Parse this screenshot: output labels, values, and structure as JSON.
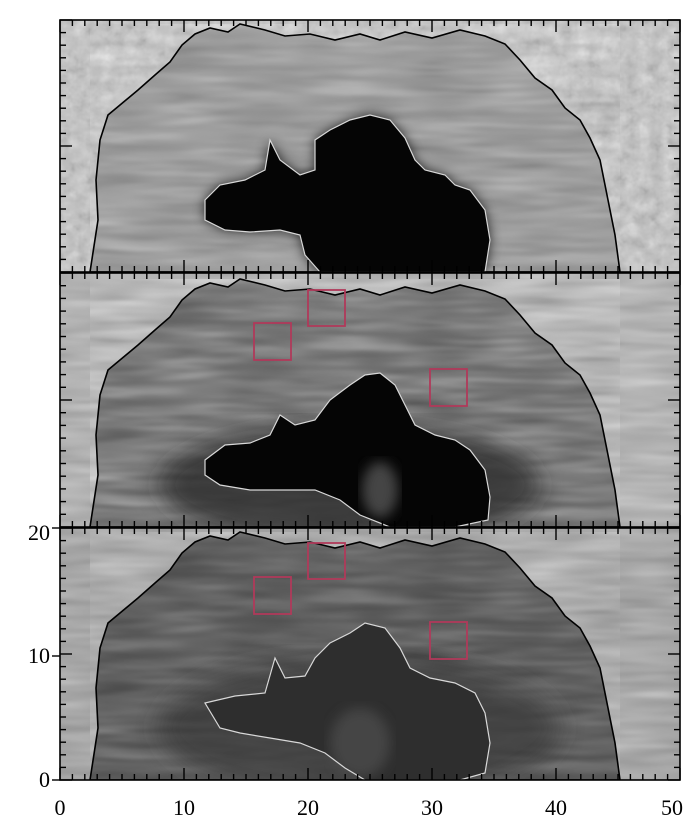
{
  "figure": {
    "panels": [
      {
        "id": "panel-1",
        "has_boxes": false,
        "y_ticks_labeled": false
      },
      {
        "id": "panel-2",
        "has_boxes": true,
        "y_ticks_labeled": false
      },
      {
        "id": "panel-3",
        "has_boxes": true,
        "y_ticks_labeled": true
      }
    ],
    "x_axis": {
      "range": [
        0,
        50
      ],
      "tick_labels": [
        "0",
        "10",
        "20",
        "30",
        "40",
        "50"
      ]
    },
    "y_axis": {
      "range": [
        0,
        20
      ],
      "tick_labels": [
        "0",
        "10",
        "20"
      ]
    },
    "boxes": [
      {
        "x": [
          16,
          19
        ],
        "y": [
          13.6,
          16.6
        ]
      },
      {
        "x": [
          20.3,
          23.3
        ],
        "y": [
          16.5,
          19.3
        ]
      },
      {
        "x": [
          30.2,
          33.2
        ],
        "y": [
          10,
          13
        ]
      }
    ],
    "colors": {
      "outer_contour": "#000000",
      "inner_contour": "#d8d8d8",
      "box": "#b03a5a",
      "frame": "#000000"
    }
  }
}
